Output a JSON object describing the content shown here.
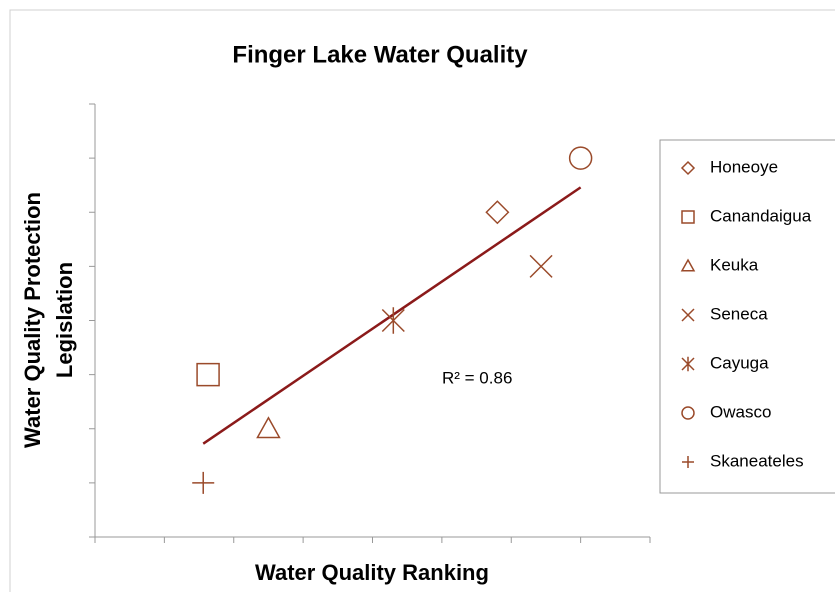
{
  "chart_data": {
    "type": "scatter",
    "title": "Finger Lake Water Quality",
    "x_label": "Water Quality Ranking",
    "y_label": [
      "Water Quality Protection",
      "Legislation"
    ],
    "annotation": "R² = 0.86",
    "xlim": [
      0,
      8
    ],
    "ylim": [
      0,
      8
    ],
    "xticks": [
      0,
      1,
      2,
      3,
      4,
      5,
      6,
      7,
      8
    ],
    "yticks": [
      0,
      1,
      2,
      3,
      4,
      5,
      6,
      7,
      8
    ],
    "grid": false,
    "trendline": true,
    "trendline_color": "#8b1a1a",
    "series": [
      {
        "name": "Honeoye",
        "marker": "diamond",
        "color": "#9a4a2a",
        "x": [
          5.8
        ],
        "values": [
          6
        ]
      },
      {
        "name": "Canandaigua",
        "marker": "square",
        "color": "#9a4a2a",
        "x": [
          1.63
        ],
        "values": [
          3
        ]
      },
      {
        "name": "Keuka",
        "marker": "triangle",
        "color": "#9a4a2a",
        "x": [
          2.5
        ],
        "values": [
          2
        ]
      },
      {
        "name": "Seneca",
        "marker": "x",
        "color": "#9a4a2a",
        "x": [
          6.43
        ],
        "values": [
          5
        ]
      },
      {
        "name": "Cayuga",
        "marker": "star",
        "color": "#9a4a2a",
        "x": [
          4.3
        ],
        "values": [
          4
        ]
      },
      {
        "name": "Owasco",
        "marker": "circle",
        "color": "#9a4a2a",
        "x": [
          7
        ],
        "values": [
          7
        ]
      },
      {
        "name": "Skaneateles",
        "marker": "plus",
        "color": "#9a4a2a",
        "x": [
          1.56
        ],
        "values": [
          1
        ]
      }
    ]
  }
}
